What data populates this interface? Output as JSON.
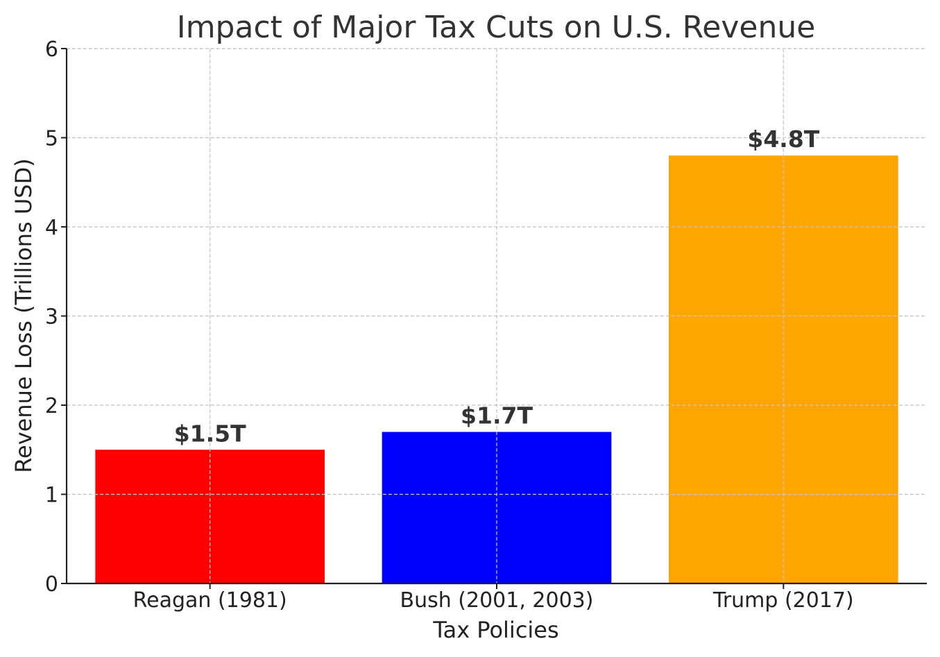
{
  "chart_data": {
    "type": "bar",
    "title": "Impact of Major Tax Cuts on U.S. Revenue",
    "xlabel": "Tax Policies",
    "ylabel": "Revenue Loss (Trillions USD)",
    "categories": [
      "Reagan (1981)",
      "Bush (2001, 2003)",
      "Trump (2017)"
    ],
    "values": [
      1.5,
      1.7,
      4.8
    ],
    "data_labels": [
      "$1.5T",
      "$1.7T",
      "$4.8T"
    ],
    "colors": [
      "#ff0000",
      "#0000ff",
      "#ffa500"
    ],
    "ylim": [
      0,
      6
    ],
    "yticks": [
      0,
      1,
      2,
      3,
      4,
      5,
      6
    ],
    "grid": true
  }
}
